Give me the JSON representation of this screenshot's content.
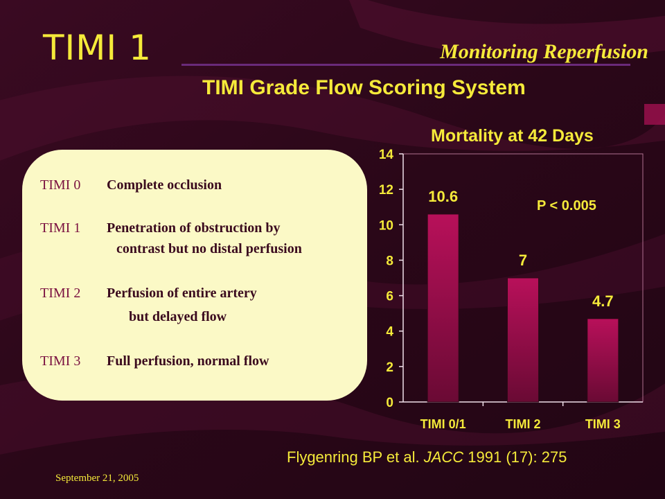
{
  "slide": {
    "title": "TIMI 1",
    "heading_right": "Monitoring Reperfusion",
    "subtitle": "TIMI Grade Flow Scoring System",
    "date": "September 21, 2005",
    "citation": {
      "authors": "Flygenring BP et al.",
      "journal": "JACC",
      "rest": "1991 (17): 275"
    }
  },
  "grades": [
    {
      "code": "TIMI 0",
      "desc": "Complete occlusion",
      "cont": ""
    },
    {
      "code": "TIMI 1",
      "desc": "Penetration of obstruction by",
      "cont": "contrast but no distal perfusion"
    },
    {
      "code": "TIMI 2",
      "desc": "Perfusion of entire artery",
      "cont": "but delayed flow"
    },
    {
      "code": "TIMI 3",
      "desc": "Full perfusion, normal flow",
      "cont": ""
    }
  ],
  "chart_data": {
    "type": "bar",
    "title": "Mortality at 42 Days",
    "categories": [
      "TIMI 0/1",
      "TIMI 2",
      "TIMI 3"
    ],
    "values": [
      10.6,
      7,
      4.7
    ],
    "data_labels": [
      "10.6",
      "7",
      "4.7"
    ],
    "ylim": [
      0,
      14
    ],
    "yticks": [
      0,
      2,
      4,
      6,
      8,
      10,
      12,
      14
    ],
    "annotation": "P < 0.005",
    "legend": "none",
    "grid": false
  },
  "colors": {
    "background": "#2a0718",
    "text_accent": "#f5ea3a",
    "box_fill": "#fbf9c6",
    "bar_top": "#b8105a",
    "bar_bottom": "#6a0a34"
  }
}
